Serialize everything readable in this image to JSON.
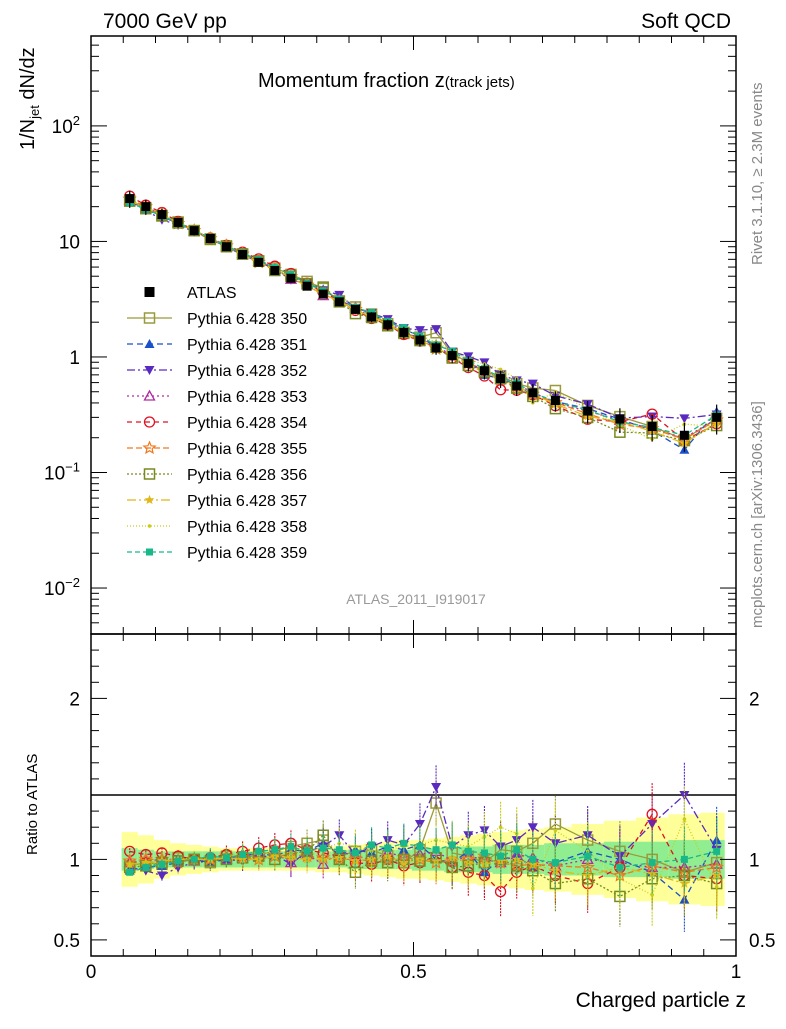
{
  "header": {
    "left": "7000 GeV pp",
    "right": "Soft QCD"
  },
  "side": {
    "top": "Rivet 3.1.10, ≥ 2.3M events",
    "bottom": "mcplots.cern.ch [arXiv:1306.3436]"
  },
  "chart_data": {
    "type": "line",
    "title_main": "Momentum fraction z",
    "title_sub": "(track jets)",
    "analysis_id": "ATLAS_2011_I919017",
    "xlabel": "Charged particle z",
    "ylabel_main": "1/N",
    "ylabel_sub": "jet",
    "ylabel_tail": " dN/dz",
    "ratio_ylabel": "Ratio to ATLAS",
    "xlim": [
      0,
      1
    ],
    "ylim_main": [
      0.004,
      600
    ],
    "ylim_ratio": [
      0.4,
      2.4
    ],
    "x_ticks": [
      "0",
      "0.5",
      "1"
    ],
    "y_ticks_main": [
      {
        "base": "10",
        "exp": "−2",
        "value": 0.01
      },
      {
        "base": "10",
        "exp": "−1",
        "value": 0.1
      },
      {
        "base": "1",
        "exp": "",
        "value": 1
      },
      {
        "base": "10",
        "exp": "",
        "value": 10
      },
      {
        "base": "10",
        "exp": "2",
        "value": 100
      }
    ],
    "y_ticks_ratio": [
      "0.5",
      "1",
      "2"
    ],
    "x": [
      0.06,
      0.085,
      0.11,
      0.135,
      0.16,
      0.185,
      0.21,
      0.235,
      0.26,
      0.285,
      0.31,
      0.335,
      0.36,
      0.385,
      0.41,
      0.435,
      0.46,
      0.485,
      0.51,
      0.535,
      0.56,
      0.585,
      0.61,
      0.635,
      0.66,
      0.685,
      0.72,
      0.77,
      0.82,
      0.87,
      0.92,
      0.97
    ],
    "atlas": [
      23.5,
      20.0,
      17.1,
      14.6,
      12.4,
      10.6,
      9.0,
      7.7,
      6.6,
      5.6,
      4.8,
      4.1,
      3.5,
      3.0,
      2.58,
      2.22,
      1.9,
      1.63,
      1.4,
      1.2,
      1.03,
      0.88,
      0.76,
      0.65,
      0.56,
      0.49,
      0.42,
      0.34,
      0.29,
      0.25,
      0.21,
      0.3
    ],
    "band_inner": [
      0.07,
      0.06,
      0.05,
      0.05,
      0.05,
      0.05,
      0.05,
      0.05,
      0.05,
      0.05,
      0.05,
      0.05,
      0.05,
      0.05,
      0.06,
      0.06,
      0.06,
      0.06,
      0.07,
      0.07,
      0.08,
      0.08,
      0.08,
      0.09,
      0.09,
      0.09,
      0.1,
      0.1,
      0.11,
      0.11,
      0.12,
      0.12
    ],
    "band_outer": [
      0.17,
      0.15,
      0.12,
      0.1,
      0.09,
      0.08,
      0.07,
      0.07,
      0.07,
      0.07,
      0.07,
      0.07,
      0.08,
      0.08,
      0.09,
      0.1,
      0.11,
      0.12,
      0.12,
      0.13,
      0.14,
      0.15,
      0.16,
      0.17,
      0.18,
      0.19,
      0.2,
      0.22,
      0.24,
      0.26,
      0.28,
      0.29
    ],
    "legend_data_label": "ATLAS",
    "series": [
      {
        "name": "Pythia 6.428 350",
        "color": "#9a9a3a",
        "marker": "square-open",
        "dash": "",
        "ratio": [
          0.96,
          0.98,
          0.97,
          1.01,
          1.0,
          0.98,
          1.02,
          1.01,
          1.03,
          1.05,
          1.08,
          1.1,
          1.12,
          1.02,
          1.05,
          1.06,
          1.02,
          0.98,
          1.06,
          1.35,
          1.04,
          1.02,
          0.98,
          1.06,
          1.05,
          1.1,
          1.22,
          1.12,
          1.05,
          1.0,
          0.92,
          0.98
        ]
      },
      {
        "name": "Pythia 6.428 351",
        "color": "#1a50c8",
        "marker": "triangle-up",
        "dash": "6,4",
        "ratio": [
          0.93,
          0.95,
          0.96,
          0.98,
          1.0,
          0.98,
          1.0,
          1.02,
          1.04,
          1.02,
          1.06,
          1.05,
          1.1,
          1.03,
          1.06,
          1.04,
          1.08,
          1.06,
          1.09,
          1.0,
          0.98,
          1.05,
          0.92,
          1.0,
          1.02,
          0.95,
          0.98,
          1.05,
          1.0,
          0.92,
          0.75,
          1.12
        ]
      },
      {
        "name": "Pythia 6.428 352",
        "color": "#5a2ac0",
        "marker": "triangle-down",
        "dash": "8,3,2,3",
        "ratio": [
          0.95,
          0.93,
          0.9,
          0.95,
          0.98,
          0.99,
          1.0,
          0.99,
          1.01,
          1.03,
          0.97,
          1.05,
          1.08,
          1.15,
          1.03,
          1.08,
          1.12,
          1.09,
          1.22,
          1.45,
          1.08,
          1.15,
          1.18,
          1.08,
          1.12,
          1.2,
          1.1,
          1.15,
          1.02,
          1.22,
          1.4,
          1.06
        ]
      },
      {
        "name": "Pythia 6.428 353",
        "color": "#b02aa0",
        "marker": "triangle-up-open",
        "dash": "2,3",
        "ratio": [
          0.98,
          0.99,
          1.0,
          1.0,
          0.99,
          1.01,
          1.0,
          1.03,
          1.02,
          1.04,
          0.98,
          1.03,
          0.97,
          1.05,
          1.02,
          1.0,
          1.04,
          1.02,
          1.03,
          1.05,
          0.99,
          1.02,
          1.0,
          0.98,
          1.03,
          1.01,
          0.96,
          1.0,
          0.98,
          0.95,
          0.95,
          0.97
        ]
      },
      {
        "name": "Pythia 6.428 354",
        "color": "#e01020",
        "marker": "circle-open",
        "dash": "5,4",
        "ratio": [
          1.05,
          1.03,
          1.04,
          1.02,
          1.0,
          1.01,
          1.03,
          1.05,
          1.07,
          1.09,
          1.1,
          1.06,
          1.04,
          1.02,
          0.98,
          0.97,
          1.0,
          0.96,
          0.98,
          1.02,
          0.95,
          0.92,
          0.9,
          0.8,
          0.92,
          0.96,
          0.9,
          0.85,
          0.95,
          1.28,
          0.9,
          0.88
        ]
      },
      {
        "name": "Pythia 6.428 355",
        "color": "#f07820",
        "marker": "star-open",
        "dash": "6,3",
        "ratio": [
          0.99,
          1.0,
          1.0,
          0.98,
          1.0,
          1.0,
          1.02,
          1.01,
          1.0,
          1.02,
          1.03,
          1.02,
          1.01,
          1.0,
          1.0,
          0.99,
          1.0,
          1.01,
          1.0,
          0.98,
          0.99,
          1.0,
          1.02,
          0.98,
          0.96,
          0.97,
          0.96,
          0.95,
          0.9,
          0.96,
          0.92,
          0.95
        ]
      },
      {
        "name": "Pythia 6.428 356",
        "color": "#788a20",
        "marker": "square-open",
        "dash": "2,2",
        "ratio": [
          0.95,
          0.96,
          0.98,
          0.99,
          1.0,
          0.99,
          1.0,
          1.01,
          1.02,
          1.0,
          1.04,
          1.05,
          1.15,
          1.0,
          0.92,
          0.99,
          0.98,
          1.0,
          0.99,
          1.01,
          0.95,
          0.96,
          0.98,
          1.0,
          0.96,
          0.93,
          0.85,
          0.88,
          0.77,
          0.88,
          0.9,
          0.85
        ]
      },
      {
        "name": "Pythia 6.428 357",
        "color": "#e0b818",
        "marker": "star-small",
        "dash": "9,3,2,3",
        "ratio": [
          0.97,
          0.98,
          0.99,
          1.0,
          1.0,
          1.0,
          1.01,
          1.0,
          1.0,
          1.02,
          1.01,
          1.0,
          1.0,
          1.01,
          0.99,
          1.0,
          1.02,
          0.98,
          1.0,
          0.99,
          1.01,
          0.98,
          0.97,
          0.99,
          1.0,
          0.97,
          0.93,
          0.9,
          0.95,
          0.91,
          0.85,
          0.9
        ]
      },
      {
        "name": "Pythia 6.428 358",
        "color": "#c8cc18",
        "marker": "dot",
        "dash": "1,2",
        "ratio": [
          0.96,
          0.97,
          0.98,
          1.0,
          1.01,
          1.0,
          1.02,
          1.04,
          1.03,
          1.05,
          1.04,
          1.06,
          1.07,
          1.1,
          1.08,
          1.05,
          1.06,
          1.08,
          1.09,
          1.12,
          1.1,
          1.08,
          1.14,
          1.2,
          1.16,
          0.82,
          1.18,
          1.05,
          0.88,
          0.78,
          1.25,
          0.83
        ]
      },
      {
        "name": "Pythia 6.428 359",
        "color": "#18b888",
        "marker": "square",
        "dash": "5,3",
        "ratio": [
          0.92,
          0.95,
          0.97,
          0.99,
          1.0,
          1.02,
          1.01,
          1.03,
          1.05,
          1.06,
          1.08,
          1.05,
          1.07,
          1.06,
          1.04,
          1.09,
          1.07,
          1.1,
          1.08,
          1.06,
          1.09,
          1.05,
          1.04,
          1.02,
          1.06,
          1.0,
          0.98,
          1.02,
          0.95,
          0.98,
          1.0,
          1.05
        ]
      }
    ]
  }
}
